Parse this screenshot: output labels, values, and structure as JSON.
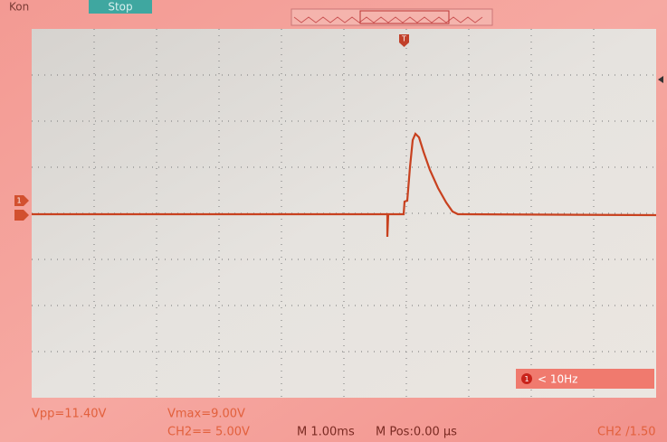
{
  "header": {
    "brand": "Kon",
    "status": "Stop"
  },
  "markers": {
    "trigger": "T",
    "channel": "1"
  },
  "frequency": {
    "channel": "1",
    "label": "< 10Hz"
  },
  "measurements": [
    "Vpp=11.40V",
    "Vmax=9.00V"
  ],
  "footer": {
    "channel_scale": "CH2== 5.00V",
    "timebase": "M 1.00ms",
    "position": "M Pos:0.00 µs",
    "trigger_level": "CH2 /1.50"
  }
}
